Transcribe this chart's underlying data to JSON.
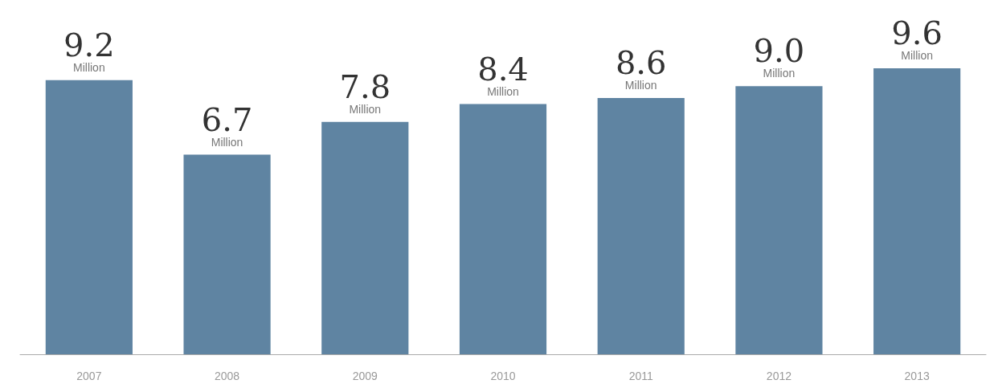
{
  "chart_data": {
    "type": "bar",
    "categories": [
      "2007",
      "2008",
      "2009",
      "2010",
      "2011",
      "2012",
      "2013"
    ],
    "values": [
      9.2,
      6.7,
      7.8,
      8.4,
      8.6,
      9.0,
      9.6
    ],
    "value_labels": [
      "9.2 Million",
      "6.7 Million",
      "7.8 Million",
      "8.4 Million",
      "8.6 Million",
      "9.0 Million",
      "9.6 Million"
    ],
    "color": "#5f84a2"
  }
}
